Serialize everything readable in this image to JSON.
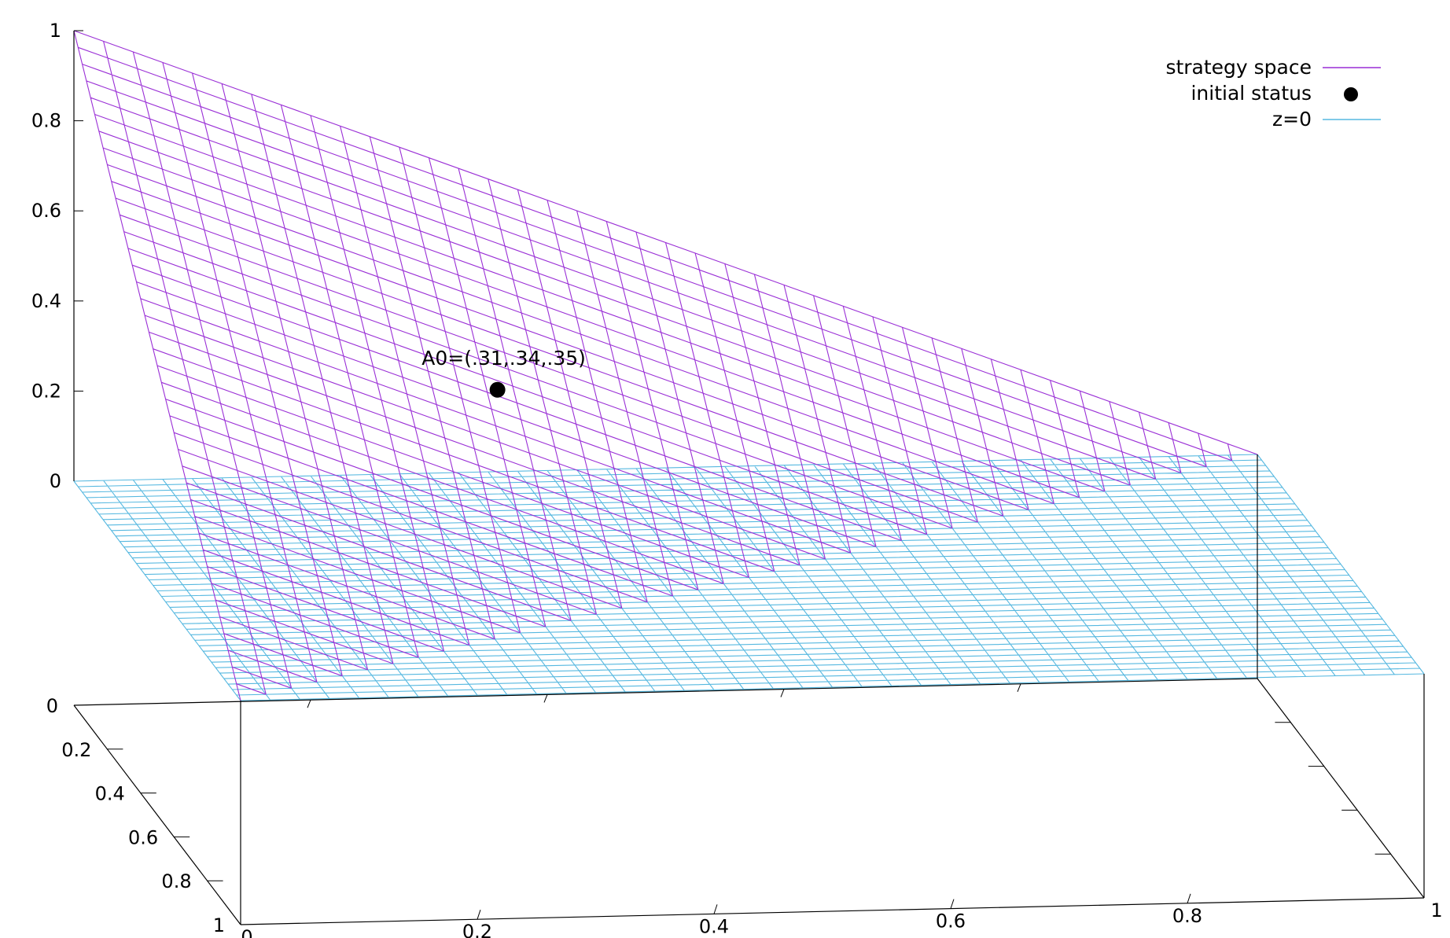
{
  "chart_data": {
    "type": "surface3d",
    "axes": {
      "x": {
        "ticks": [
          "0",
          "0.2",
          "0.4",
          "0.6",
          "0.8",
          "1"
        ],
        "range": [
          0,
          1
        ]
      },
      "y": {
        "ticks": [
          "0",
          "0.2",
          "0.4",
          "0.6",
          "0.8",
          "1"
        ],
        "range": [
          0,
          1
        ]
      },
      "z": {
        "ticks": [
          "0",
          "0.2",
          "0.4",
          "0.6",
          "0.8",
          "1"
        ],
        "range": [
          0,
          1
        ]
      }
    },
    "series": [
      {
        "name": "strategy space",
        "kind": "mesh",
        "equation": "z = 1 - x - y",
        "color": "#9a2fd6"
      },
      {
        "name": "initial status",
        "kind": "point",
        "x": 0.31,
        "y": 0.34,
        "z": 0.35,
        "color": "#000000"
      },
      {
        "name": "z=0",
        "kind": "mesh",
        "equation": "z = 0",
        "color": "#56b8e0"
      }
    ],
    "annotations": [
      {
        "text": "A0=(.31,.34,.35)"
      }
    ],
    "legend_placement": "top-right",
    "grid": false
  }
}
